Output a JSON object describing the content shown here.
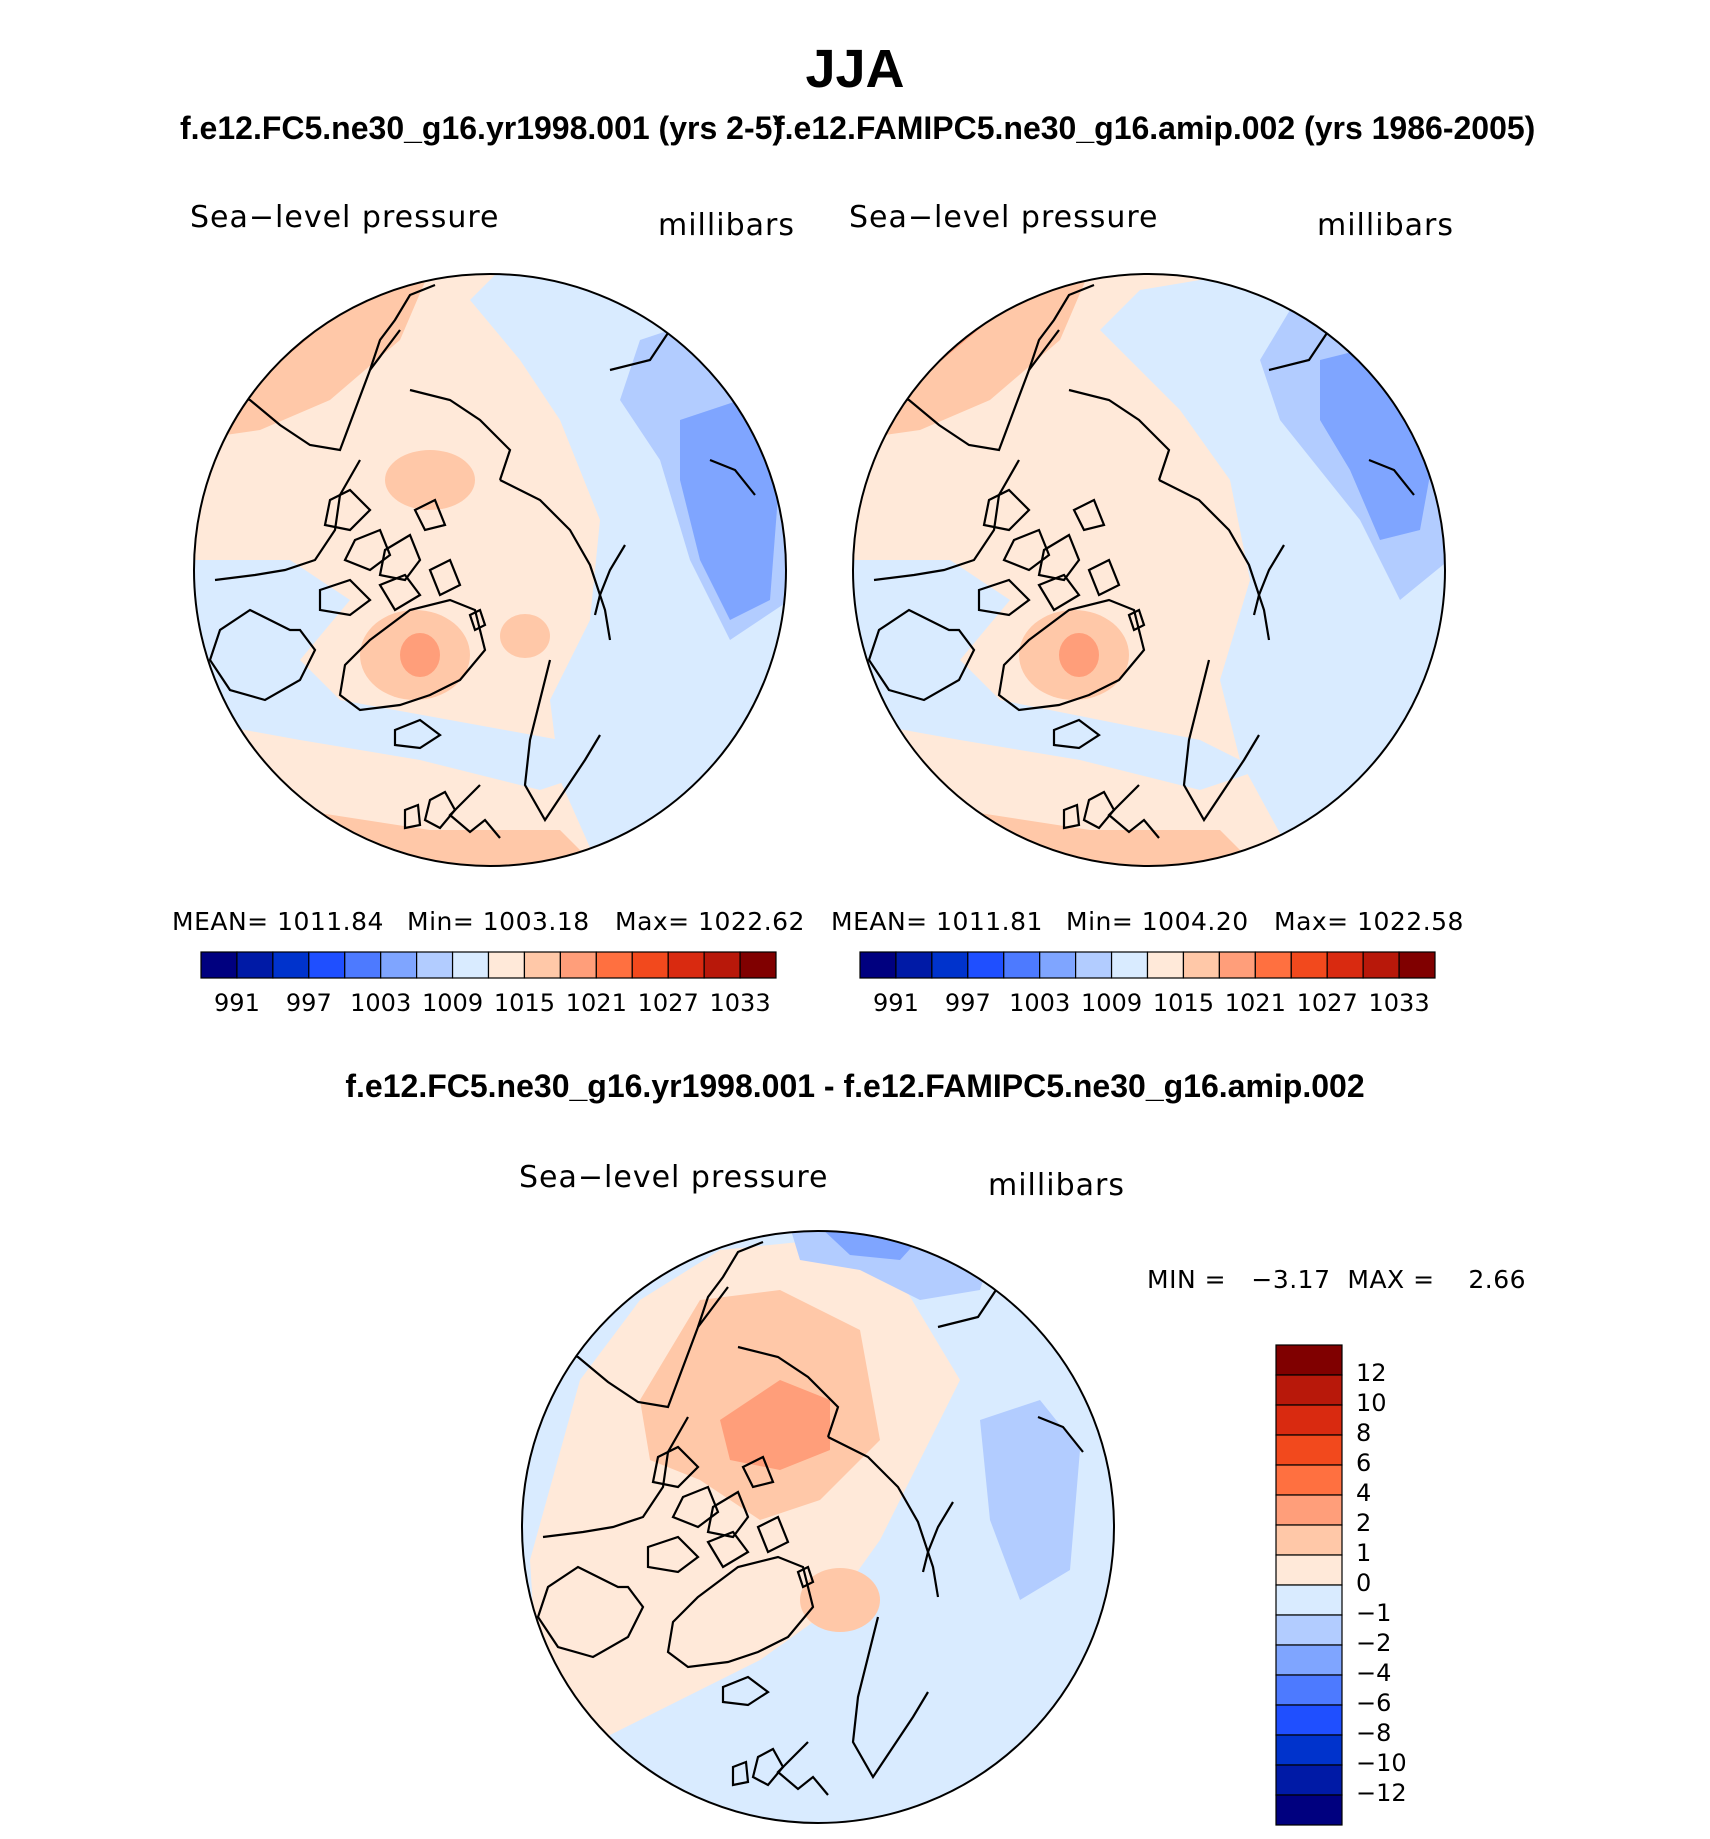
{
  "figure": {
    "title": "JJA",
    "case1_title": "f.e12.FC5.ne30_g16.yr1998.001 (yrs 2-5)",
    "case2_title": "f.e12.FAMIPC5.ne30_g16.amip.002 (yrs 1986-2005)",
    "diff_title": "f.e12.FC5.ne30_g16.yr1998.001 - f.e12.FAMIPC5.ne30_g16.amip.002"
  },
  "panels": {
    "left": {
      "variable": "Sea−level pressure",
      "units": "millibars",
      "mean": "MEAN=  1011.84",
      "min": "Min=  1003.18",
      "max": "Max=  1022.62"
    },
    "right": {
      "variable": "Sea−level pressure",
      "units": "millibars",
      "mean": "MEAN=  1011.81",
      "min": "Min=  1004.20",
      "max": "Max=  1022.58"
    },
    "diff": {
      "variable": "Sea−level pressure",
      "units": "millibars",
      "minmax": "MIN =   −3.17  MAX =    2.66"
    }
  },
  "chart_data": [
    {
      "type": "heatmap",
      "projection": "north polar stereographic",
      "title": "f.e12.FC5.ne30_g16.yr1998.001 (yrs 2-5)",
      "variable": "Sea-level pressure",
      "units": "millibars",
      "mean": 1011.84,
      "min": 1003.18,
      "max": 1022.62,
      "colorbar_levels": [
        991,
        994,
        997,
        1000,
        1003,
        1006,
        1009,
        1012,
        1015,
        1018,
        1021,
        1024,
        1027,
        1030,
        1033
      ],
      "colorbar_tick_labels": [
        "991",
        "997",
        "1003",
        "1009",
        "1015",
        "1021",
        "1027",
        "1033"
      ],
      "colors": [
        "#00007f",
        "#001aa6",
        "#0033cc",
        "#1f4fff",
        "#4d7aff",
        "#7fa5ff",
        "#b2ccff",
        "#d9ebff",
        "#ffe9d9",
        "#ffc8a8",
        "#ff9e7a",
        "#ff7040",
        "#f2491d",
        "#d92a10",
        "#b8180a",
        "#800000"
      ]
    },
    {
      "type": "heatmap",
      "projection": "north polar stereographic",
      "title": "f.e12.FAMIPC5.ne30_g16.amip.002 (yrs 1986-2005)",
      "variable": "Sea-level pressure",
      "units": "millibars",
      "mean": 1011.81,
      "min": 1004.2,
      "max": 1022.58,
      "colorbar_levels": [
        991,
        994,
        997,
        1000,
        1003,
        1006,
        1009,
        1012,
        1015,
        1018,
        1021,
        1024,
        1027,
        1030,
        1033
      ],
      "colorbar_tick_labels": [
        "991",
        "997",
        "1003",
        "1009",
        "1015",
        "1021",
        "1027",
        "1033"
      ],
      "colors": [
        "#00007f",
        "#001aa6",
        "#0033cc",
        "#1f4fff",
        "#4d7aff",
        "#7fa5ff",
        "#b2ccff",
        "#d9ebff",
        "#ffe9d9",
        "#ffc8a8",
        "#ff9e7a",
        "#ff7040",
        "#f2491d",
        "#d92a10",
        "#b8180a",
        "#800000"
      ]
    },
    {
      "type": "heatmap",
      "projection": "north polar stereographic",
      "title": "f.e12.FC5.ne30_g16.yr1998.001 - f.e12.FAMIPC5.ne30_g16.amip.002",
      "variable": "Sea-level pressure",
      "units": "millibars",
      "min": -3.17,
      "max": 2.66,
      "colorbar_levels": [
        12,
        10,
        8,
        6,
        4,
        2,
        1,
        0,
        -1,
        -2,
        -4,
        -6,
        -8,
        -10,
        -12
      ],
      "colorbar_tick_labels": [
        "12",
        "10",
        "8",
        "6",
        "4",
        "2",
        "1",
        "0",
        "−1",
        "−2",
        "−4",
        "−6",
        "−8",
        "−10",
        "−12"
      ],
      "colors": [
        "#800000",
        "#b8180a",
        "#d92a10",
        "#f2491d",
        "#ff7040",
        "#ff9e7a",
        "#ffc8a8",
        "#ffe9d9",
        "#d9ebff",
        "#b2ccff",
        "#7fa5ff",
        "#4d7aff",
        "#1f4fff",
        "#0033cc",
        "#001aa6",
        "#00007f"
      ]
    }
  ]
}
